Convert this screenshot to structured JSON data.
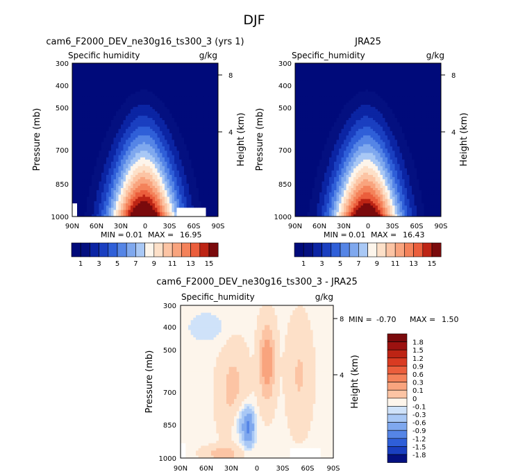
{
  "page_title": "DJF",
  "colors": {
    "positive_ramp": [
      "#fdf5eb",
      "#fde0c8",
      "#fcc4a4",
      "#f9a47e",
      "#f4825a",
      "#eb5e3c",
      "#d93b22",
      "#bd2414",
      "#9c1210",
      "#7a0a0c"
    ],
    "negative_ramp": [
      "#cfe2f9",
      "#a9c8f5",
      "#7fa8ee",
      "#5585e6",
      "#2f5fd8",
      "#1a3fc0",
      "#0b24a3",
      "#041080",
      "#000a7a"
    ]
  },
  "chart_data": [
    {
      "type": "contour",
      "panel": "model",
      "title": "cam6_F2000_DEV_ne30g16_ts300_3 (yrs 1)",
      "subtitle_left": "Specific humidity",
      "subtitle_right": "g/kg",
      "ylabel": "Pressure (mb)",
      "ylabel_right": "Height (km)",
      "xticks": [
        "90N",
        "60N",
        "30N",
        "0",
        "30S",
        "60S",
        "90S"
      ],
      "yticks": [
        "300",
        "400",
        "500",
        "700",
        "850",
        "1000"
      ],
      "yticks_right": [
        "8",
        "4"
      ],
      "min_label": "MIN =",
      "min_value": "0.01",
      "max_label": "MAX =",
      "max_value": "16.95",
      "levels": [
        0,
        1,
        2,
        3,
        4,
        5,
        6,
        7,
        8,
        9,
        10,
        11,
        12,
        13,
        14,
        15
      ],
      "colorbar_labels": [
        "1",
        "3",
        "5",
        "7",
        "9",
        "11",
        "13",
        "15"
      ]
    },
    {
      "type": "contour",
      "panel": "obs",
      "title": "JRA25",
      "subtitle_left": "Specific_humidity",
      "subtitle_right": "g/kg",
      "ylabel": "Pressure (mb)",
      "ylabel_right": "Height (km)",
      "xticks": [
        "90N",
        "60N",
        "30N",
        "0",
        "30S",
        "60S",
        "90S"
      ],
      "yticks": [
        "300",
        "400",
        "500",
        "700",
        "850",
        "1000"
      ],
      "yticks_right": [
        "8",
        "4"
      ],
      "min_label": "MIN =",
      "min_value": "0.01",
      "max_label": "MAX =",
      "max_value": "16.43",
      "levels": [
        0,
        1,
        2,
        3,
        4,
        5,
        6,
        7,
        8,
        9,
        10,
        11,
        12,
        13,
        14,
        15
      ],
      "colorbar_labels": [
        "1",
        "3",
        "5",
        "7",
        "9",
        "11",
        "13",
        "15"
      ]
    },
    {
      "type": "contour",
      "panel": "difference",
      "title": "cam6_F2000_DEV_ne30g16_ts300_3 - JRA25",
      "subtitle_left": "Specific_humidity",
      "subtitle_right": "g/kg",
      "ylabel": "Pressure (mb)",
      "ylabel_right": "Height (km)",
      "xticks": [
        "90N",
        "60N",
        "30N",
        "0",
        "30S",
        "60S",
        "90S"
      ],
      "yticks": [
        "300",
        "400",
        "500",
        "700",
        "850",
        "1000"
      ],
      "yticks_right": [
        "8",
        "4"
      ],
      "min_label": "MIN =",
      "min_value": "-0.70",
      "max_label": "MAX =",
      "max_value": "1.50",
      "levels": [
        -1.8,
        -1.5,
        -1.2,
        -0.9,
        -0.6,
        -0.3,
        -0.1,
        0,
        0.1,
        0.3,
        0.6,
        0.9,
        1.2,
        1.5,
        1.8
      ],
      "colorbar_labels": [
        "1.8",
        "1.5",
        "1.2",
        "0.9",
        "0.6",
        "0.3",
        "0.1",
        "0",
        "-0.1",
        "-0.3",
        "-0.6",
        "-0.9",
        "-1.2",
        "-1.5",
        "-1.8"
      ]
    }
  ]
}
